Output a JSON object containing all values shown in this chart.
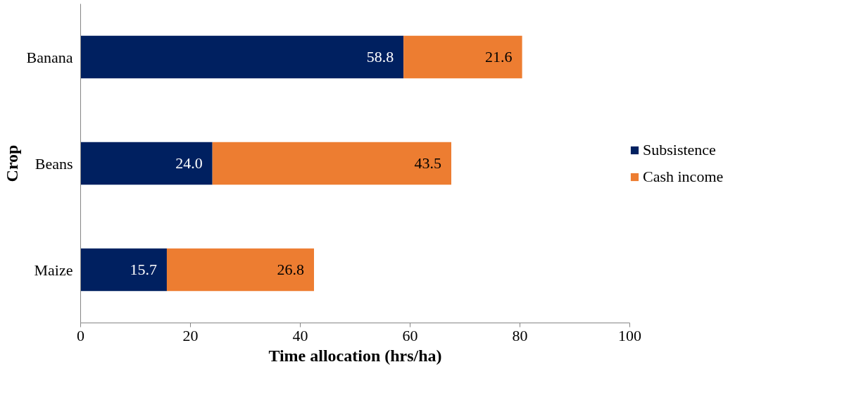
{
  "chart_data": {
    "type": "bar",
    "orientation": "horizontal",
    "stacked": true,
    "xlabel": "Time allocation (hrs/ha)",
    "ylabel": "Crop",
    "categories": [
      "Banana",
      "Beans",
      "Maize"
    ],
    "series": [
      {
        "name": "Subsistence",
        "color": "#002060",
        "values": [
          58.8,
          24.0,
          15.7
        ],
        "value_labels": [
          "58.8",
          "24.0",
          "15.7"
        ]
      },
      {
        "name": "Cash income",
        "color": "#ed7d31",
        "values": [
          21.6,
          43.5,
          26.8
        ],
        "value_labels": [
          "21.6",
          "43.5",
          "26.8"
        ]
      }
    ],
    "xlim": [
      0,
      100
    ],
    "xticks": [
      0,
      20,
      40,
      60,
      80,
      100
    ],
    "grid": false,
    "legend": "right"
  }
}
